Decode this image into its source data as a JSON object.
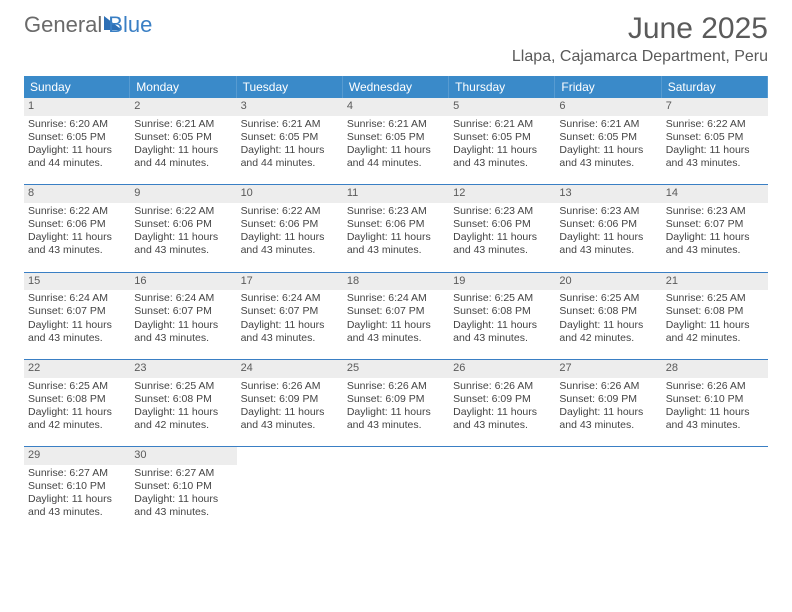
{
  "logo": {
    "part1": "General",
    "part2": "Blue"
  },
  "title": "June 2025",
  "location": "Llapa, Cajamarca Department, Peru",
  "colors": {
    "header_bg": "#3a8ac9",
    "accent": "#3a7fc4",
    "daynum_bg": "#ededed",
    "text": "#444444",
    "white": "#ffffff"
  },
  "dow": [
    "Sunday",
    "Monday",
    "Tuesday",
    "Wednesday",
    "Thursday",
    "Friday",
    "Saturday"
  ],
  "weeks": [
    [
      {
        "n": "1",
        "sr": "Sunrise: 6:20 AM",
        "ss": "Sunset: 6:05 PM",
        "d1": "Daylight: 11 hours",
        "d2": "and 44 minutes."
      },
      {
        "n": "2",
        "sr": "Sunrise: 6:21 AM",
        "ss": "Sunset: 6:05 PM",
        "d1": "Daylight: 11 hours",
        "d2": "and 44 minutes."
      },
      {
        "n": "3",
        "sr": "Sunrise: 6:21 AM",
        "ss": "Sunset: 6:05 PM",
        "d1": "Daylight: 11 hours",
        "d2": "and 44 minutes."
      },
      {
        "n": "4",
        "sr": "Sunrise: 6:21 AM",
        "ss": "Sunset: 6:05 PM",
        "d1": "Daylight: 11 hours",
        "d2": "and 44 minutes."
      },
      {
        "n": "5",
        "sr": "Sunrise: 6:21 AM",
        "ss": "Sunset: 6:05 PM",
        "d1": "Daylight: 11 hours",
        "d2": "and 43 minutes."
      },
      {
        "n": "6",
        "sr": "Sunrise: 6:21 AM",
        "ss": "Sunset: 6:05 PM",
        "d1": "Daylight: 11 hours",
        "d2": "and 43 minutes."
      },
      {
        "n": "7",
        "sr": "Sunrise: 6:22 AM",
        "ss": "Sunset: 6:05 PM",
        "d1": "Daylight: 11 hours",
        "d2": "and 43 minutes."
      }
    ],
    [
      {
        "n": "8",
        "sr": "Sunrise: 6:22 AM",
        "ss": "Sunset: 6:06 PM",
        "d1": "Daylight: 11 hours",
        "d2": "and 43 minutes."
      },
      {
        "n": "9",
        "sr": "Sunrise: 6:22 AM",
        "ss": "Sunset: 6:06 PM",
        "d1": "Daylight: 11 hours",
        "d2": "and 43 minutes."
      },
      {
        "n": "10",
        "sr": "Sunrise: 6:22 AM",
        "ss": "Sunset: 6:06 PM",
        "d1": "Daylight: 11 hours",
        "d2": "and 43 minutes."
      },
      {
        "n": "11",
        "sr": "Sunrise: 6:23 AM",
        "ss": "Sunset: 6:06 PM",
        "d1": "Daylight: 11 hours",
        "d2": "and 43 minutes."
      },
      {
        "n": "12",
        "sr": "Sunrise: 6:23 AM",
        "ss": "Sunset: 6:06 PM",
        "d1": "Daylight: 11 hours",
        "d2": "and 43 minutes."
      },
      {
        "n": "13",
        "sr": "Sunrise: 6:23 AM",
        "ss": "Sunset: 6:06 PM",
        "d1": "Daylight: 11 hours",
        "d2": "and 43 minutes."
      },
      {
        "n": "14",
        "sr": "Sunrise: 6:23 AM",
        "ss": "Sunset: 6:07 PM",
        "d1": "Daylight: 11 hours",
        "d2": "and 43 minutes."
      }
    ],
    [
      {
        "n": "15",
        "sr": "Sunrise: 6:24 AM",
        "ss": "Sunset: 6:07 PM",
        "d1": "Daylight: 11 hours",
        "d2": "and 43 minutes."
      },
      {
        "n": "16",
        "sr": "Sunrise: 6:24 AM",
        "ss": "Sunset: 6:07 PM",
        "d1": "Daylight: 11 hours",
        "d2": "and 43 minutes."
      },
      {
        "n": "17",
        "sr": "Sunrise: 6:24 AM",
        "ss": "Sunset: 6:07 PM",
        "d1": "Daylight: 11 hours",
        "d2": "and 43 minutes."
      },
      {
        "n": "18",
        "sr": "Sunrise: 6:24 AM",
        "ss": "Sunset: 6:07 PM",
        "d1": "Daylight: 11 hours",
        "d2": "and 43 minutes."
      },
      {
        "n": "19",
        "sr": "Sunrise: 6:25 AM",
        "ss": "Sunset: 6:08 PM",
        "d1": "Daylight: 11 hours",
        "d2": "and 43 minutes."
      },
      {
        "n": "20",
        "sr": "Sunrise: 6:25 AM",
        "ss": "Sunset: 6:08 PM",
        "d1": "Daylight: 11 hours",
        "d2": "and 42 minutes."
      },
      {
        "n": "21",
        "sr": "Sunrise: 6:25 AM",
        "ss": "Sunset: 6:08 PM",
        "d1": "Daylight: 11 hours",
        "d2": "and 42 minutes."
      }
    ],
    [
      {
        "n": "22",
        "sr": "Sunrise: 6:25 AM",
        "ss": "Sunset: 6:08 PM",
        "d1": "Daylight: 11 hours",
        "d2": "and 42 minutes."
      },
      {
        "n": "23",
        "sr": "Sunrise: 6:25 AM",
        "ss": "Sunset: 6:08 PM",
        "d1": "Daylight: 11 hours",
        "d2": "and 42 minutes."
      },
      {
        "n": "24",
        "sr": "Sunrise: 6:26 AM",
        "ss": "Sunset: 6:09 PM",
        "d1": "Daylight: 11 hours",
        "d2": "and 43 minutes."
      },
      {
        "n": "25",
        "sr": "Sunrise: 6:26 AM",
        "ss": "Sunset: 6:09 PM",
        "d1": "Daylight: 11 hours",
        "d2": "and 43 minutes."
      },
      {
        "n": "26",
        "sr": "Sunrise: 6:26 AM",
        "ss": "Sunset: 6:09 PM",
        "d1": "Daylight: 11 hours",
        "d2": "and 43 minutes."
      },
      {
        "n": "27",
        "sr": "Sunrise: 6:26 AM",
        "ss": "Sunset: 6:09 PM",
        "d1": "Daylight: 11 hours",
        "d2": "and 43 minutes."
      },
      {
        "n": "28",
        "sr": "Sunrise: 6:26 AM",
        "ss": "Sunset: 6:10 PM",
        "d1": "Daylight: 11 hours",
        "d2": "and 43 minutes."
      }
    ],
    [
      {
        "n": "29",
        "sr": "Sunrise: 6:27 AM",
        "ss": "Sunset: 6:10 PM",
        "d1": "Daylight: 11 hours",
        "d2": "and 43 minutes."
      },
      {
        "n": "30",
        "sr": "Sunrise: 6:27 AM",
        "ss": "Sunset: 6:10 PM",
        "d1": "Daylight: 11 hours",
        "d2": "and 43 minutes."
      },
      null,
      null,
      null,
      null,
      null
    ]
  ]
}
